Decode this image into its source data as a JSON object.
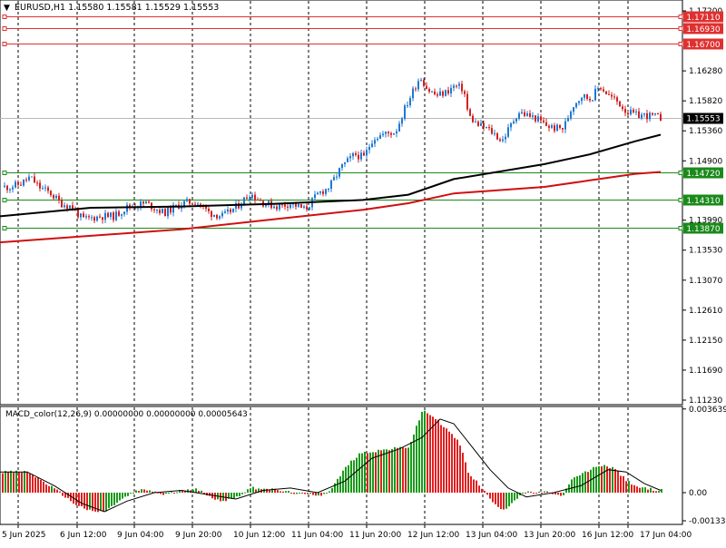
{
  "header": {
    "menu_glyph": "▼",
    "info_line": "EURUSD,H1  1.15580 1.15581 1.15529 1.15553"
  },
  "macd_label": "MACD_color(12,26,9) 0.00000000 0.00000000 0.00005643",
  "colors": {
    "bull": "#1e78d2",
    "bear": "#d22020",
    "ma_fast": "#000000",
    "ma_slow": "#d01010",
    "resistance": "#e03030",
    "support": "#1a8a1a",
    "macd_up": "#1a9a1a",
    "macd_down": "#e02020",
    "signal": "#000000",
    "price_tag": "#000000"
  },
  "chart_data": [
    {
      "type": "candlestick",
      "symbol": "EURUSD",
      "timeframe": "H1",
      "ylim": [
        1.1123,
        1.172
      ],
      "y_ticks": [
        "1.17200",
        "1.16280",
        "1.15820",
        "1.15360",
        "1.14900",
        "1.13990",
        "1.13530",
        "1.13070",
        "1.12610",
        "1.12150",
        "1.11690",
        "1.11230"
      ],
      "x_labels": [
        "5 Jun 2025",
        "6 Jun 12:00",
        "9 Jun 04:00",
        "9 Jun 20:00",
        "10 Jun 12:00",
        "11 Jun 04:00",
        "11 Jun 20:00",
        "12 Jun 12:00",
        "13 Jun 04:00",
        "13 Jun 20:00",
        "16 Jun 12:00",
        "17 Jun 04:00"
      ],
      "current_price": "1.15553",
      "levels": [
        {
          "value": "1.17110",
          "kind": "resistance"
        },
        {
          "value": "1.16930",
          "kind": "resistance"
        },
        {
          "value": "1.16700",
          "kind": "resistance"
        },
        {
          "value": "1.14720",
          "kind": "support"
        },
        {
          "value": "1.14310",
          "kind": "support"
        },
        {
          "value": "1.13870",
          "kind": "support"
        }
      ],
      "close_path": [
        [
          0,
          1.145
        ],
        [
          10,
          1.145
        ],
        [
          22,
          1.1455
        ],
        [
          32,
          1.1465
        ],
        [
          42,
          1.145
        ],
        [
          55,
          1.144
        ],
        [
          66,
          1.1425
        ],
        [
          78,
          1.142
        ],
        [
          90,
          1.14
        ],
        [
          110,
          1.1405
        ],
        [
          125,
          1.1405
        ],
        [
          140,
          1.142
        ],
        [
          160,
          1.1425
        ],
        [
          180,
          1.141
        ],
        [
          200,
          1.1425
        ],
        [
          215,
          1.1428
        ],
        [
          230,
          1.141
        ],
        [
          245,
          1.1405
        ],
        [
          260,
          1.142
        ],
        [
          275,
          1.144
        ],
        [
          290,
          1.1425
        ],
        [
          305,
          1.142
        ],
        [
          320,
          1.1425
        ],
        [
          335,
          1.1415
        ],
        [
          350,
          1.144
        ],
        [
          362,
          1.145
        ],
        [
          375,
          1.148
        ],
        [
          390,
          1.15
        ],
        [
          400,
          1.1495
        ],
        [
          410,
          1.1525
        ],
        [
          420,
          1.153
        ],
        [
          435,
          1.1535
        ],
        [
          445,
          1.157
        ],
        [
          455,
          1.16
        ],
        [
          462,
          1.162
        ],
        [
          470,
          1.16
        ],
        [
          480,
          1.159
        ],
        [
          490,
          1.1595
        ],
        [
          500,
          1.1605
        ],
        [
          510,
          1.16
        ],
        [
          515,
          1.156
        ],
        [
          525,
          1.1545
        ],
        [
          535,
          1.154
        ],
        [
          545,
          1.153
        ],
        [
          552,
          1.152
        ],
        [
          560,
          1.154
        ],
        [
          570,
          1.1565
        ],
        [
          580,
          1.156
        ],
        [
          590,
          1.1555
        ],
        [
          600,
          1.1545
        ],
        [
          610,
          1.154
        ],
        [
          620,
          1.154
        ],
        [
          630,
          1.1575
        ],
        [
          640,
          1.159
        ],
        [
          650,
          1.1585
        ],
        [
          660,
          1.1605
        ],
        [
          670,
          1.159
        ],
        [
          680,
          1.158
        ],
        [
          690,
          1.1565
        ],
        [
          700,
          1.156
        ],
        [
          710,
          1.156
        ],
        [
          720,
          1.1558
        ],
        [
          728,
          1.1555
        ]
      ],
      "series": [
        {
          "kind": "moving-average-fast",
          "path": [
            [
              0,
              1.1405
            ],
            [
              100,
              1.1418
            ],
            [
              200,
              1.142
            ],
            [
              300,
              1.1424
            ],
            [
              400,
              1.143
            ],
            [
              450,
              1.1438
            ],
            [
              500,
              1.1462
            ],
            [
              600,
              1.1485
            ],
            [
              650,
              1.15
            ],
            [
              700,
              1.152
            ],
            [
              728,
              1.153
            ]
          ]
        },
        {
          "kind": "moving-average-slow",
          "path": [
            [
              0,
              1.1365
            ],
            [
              100,
              1.1375
            ],
            [
              200,
              1.1385
            ],
            [
              300,
              1.14
            ],
            [
              400,
              1.1415
            ],
            [
              450,
              1.1425
            ],
            [
              500,
              1.144
            ],
            [
              600,
              1.145
            ],
            [
              650,
              1.146
            ],
            [
              700,
              1.147
            ],
            [
              728,
              1.1473
            ]
          ]
        }
      ]
    },
    {
      "type": "histogram",
      "indicator": "MACD_color",
      "params": [
        12,
        26,
        9
      ],
      "ylim": [
        -0.00133,
        0.00363
      ],
      "y_ticks": [
        "0.0036392",
        "0.00",
        "-0.001330"
      ],
      "histogram_path": [
        [
          0,
          0.0009
        ],
        [
          30,
          0.0009
        ],
        [
          50,
          0.0004
        ],
        [
          65,
          0.0
        ],
        [
          80,
          -0.0005
        ],
        [
          100,
          -0.0009
        ],
        [
          115,
          -0.0009
        ],
        [
          130,
          -0.0004
        ],
        [
          150,
          0.0001
        ],
        [
          165,
          0.0001
        ],
        [
          180,
          -0.0001
        ],
        [
          200,
          0.0001
        ],
        [
          215,
          0.0002
        ],
        [
          230,
          -0.0002
        ],
        [
          245,
          -0.0004
        ],
        [
          260,
          -0.0002
        ],
        [
          275,
          0.0002
        ],
        [
          290,
          0.0002
        ],
        [
          305,
          0.0001
        ],
        [
          320,
          0.0
        ],
        [
          340,
          -0.0001
        ],
        [
          355,
          -0.0001
        ],
        [
          365,
          0.0002
        ],
        [
          380,
          0.0011
        ],
        [
          395,
          0.0017
        ],
        [
          410,
          0.0018
        ],
        [
          430,
          0.0019
        ],
        [
          450,
          0.002
        ],
        [
          465,
          0.0036
        ],
        [
          480,
          0.0032
        ],
        [
          495,
          0.0026
        ],
        [
          505,
          0.0022
        ],
        [
          515,
          0.0009
        ],
        [
          530,
          0.0002
        ],
        [
          545,
          -0.0006
        ],
        [
          555,
          -0.0008
        ],
        [
          565,
          -0.0004
        ],
        [
          575,
          0.0
        ],
        [
          590,
          0.0
        ],
        [
          605,
          0.0
        ],
        [
          618,
          -0.0002
        ],
        [
          630,
          0.0006
        ],
        [
          645,
          0.0009
        ],
        [
          660,
          0.0012
        ],
        [
          675,
          0.0011
        ],
        [
          690,
          0.0005
        ],
        [
          705,
          0.0002
        ],
        [
          728,
          0.0001
        ]
      ],
      "signal_path": [
        [
          0,
          0.0009
        ],
        [
          30,
          0.0009
        ],
        [
          60,
          0.0003
        ],
        [
          90,
          -0.0005
        ],
        [
          115,
          -0.0009
        ],
        [
          140,
          -0.0004
        ],
        [
          170,
          0.0
        ],
        [
          200,
          0.0001
        ],
        [
          230,
          -0.0001
        ],
        [
          260,
          -0.0003
        ],
        [
          290,
          0.0001
        ],
        [
          320,
          0.0002
        ],
        [
          350,
          0.0
        ],
        [
          380,
          0.0005
        ],
        [
          410,
          0.0015
        ],
        [
          440,
          0.0019
        ],
        [
          465,
          0.0024
        ],
        [
          485,
          0.0032
        ],
        [
          500,
          0.003
        ],
        [
          520,
          0.002
        ],
        [
          540,
          0.001
        ],
        [
          560,
          0.0002
        ],
        [
          580,
          -0.0002
        ],
        [
          610,
          0.0
        ],
        [
          640,
          0.0003
        ],
        [
          670,
          0.001
        ],
        [
          690,
          0.0009
        ],
        [
          710,
          0.0004
        ],
        [
          728,
          0.0001
        ]
      ]
    }
  ]
}
